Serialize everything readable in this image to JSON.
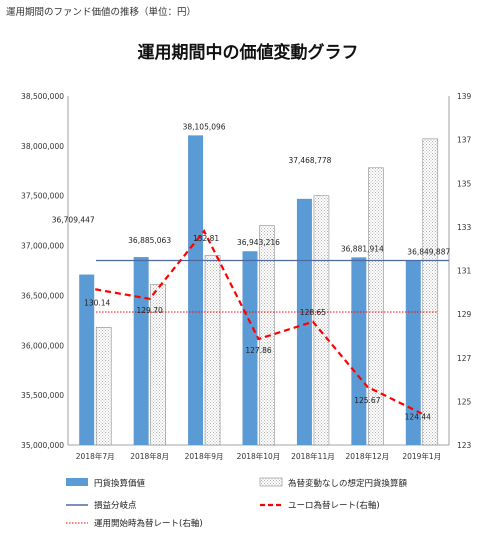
{
  "caption": "運用期間のファンド価値の推移（単位：円）",
  "chart_data": {
    "type": "bar",
    "title": "運用期間中の価値変動グラフ",
    "categories": [
      "2018年7月",
      "2018年8月",
      "2018年9月",
      "2018年10月",
      "2018年11月",
      "2018年12月",
      "2019年1月"
    ],
    "ylim": [
      35000000,
      38500000
    ],
    "yticks": [
      35000000,
      35500000,
      36000000,
      36500000,
      37000000,
      37500000,
      38000000,
      38500000
    ],
    "ytick_labels": [
      "35,000,000",
      "35,500,000",
      "36,000,000",
      "36,500,000",
      "37,000,000",
      "37,500,000",
      "38,000,000",
      "38,500,000"
    ],
    "y2lim": [
      123,
      139
    ],
    "y2ticks": [
      123,
      125,
      127,
      129,
      131,
      133,
      135,
      137,
      139
    ],
    "y2tick_labels": [
      "123",
      "125",
      "127",
      "129",
      "131",
      "133",
      "135",
      "137",
      "139"
    ],
    "grid": false,
    "legend_position": "bottom",
    "series": [
      {
        "name": "円貨換算価値",
        "kind": "bar",
        "axis": "left",
        "color": "#5b9bd5",
        "values": [
          36709447,
          36885063,
          38105096,
          36943216,
          37468778,
          36881914,
          36849887
        ],
        "labels": [
          "36,709,447",
          "36,885,063",
          "38,105,096",
          "36,943,216",
          "37,468,778",
          "36,881,914",
          "36,849,887"
        ]
      },
      {
        "name": "為替変動なしの想定円貨換算額",
        "kind": "bar",
        "axis": "left",
        "color": "#ffffff",
        "values": [
          36180000,
          36610000,
          36900000,
          37200000,
          37500000,
          37780000,
          38070000
        ]
      },
      {
        "name": "損益分岐点",
        "kind": "hline",
        "axis": "left",
        "color": "#4e6aa3",
        "value": 36850000
      },
      {
        "name": "ユーロ為替レート(右軸)",
        "kind": "line",
        "axis": "right",
        "color": "#ff0000",
        "values": [
          130.14,
          129.7,
          132.81,
          127.86,
          128.65,
          125.67,
          124.44
        ],
        "labels": [
          "130.14",
          "129.70",
          "132.81",
          "127.86",
          "128.65",
          "125.67",
          "124.44"
        ]
      },
      {
        "name": "運用開始時為替レート(右軸)",
        "kind": "hline",
        "axis": "right",
        "color": "#ff0000",
        "value": 129.1
      }
    ]
  }
}
